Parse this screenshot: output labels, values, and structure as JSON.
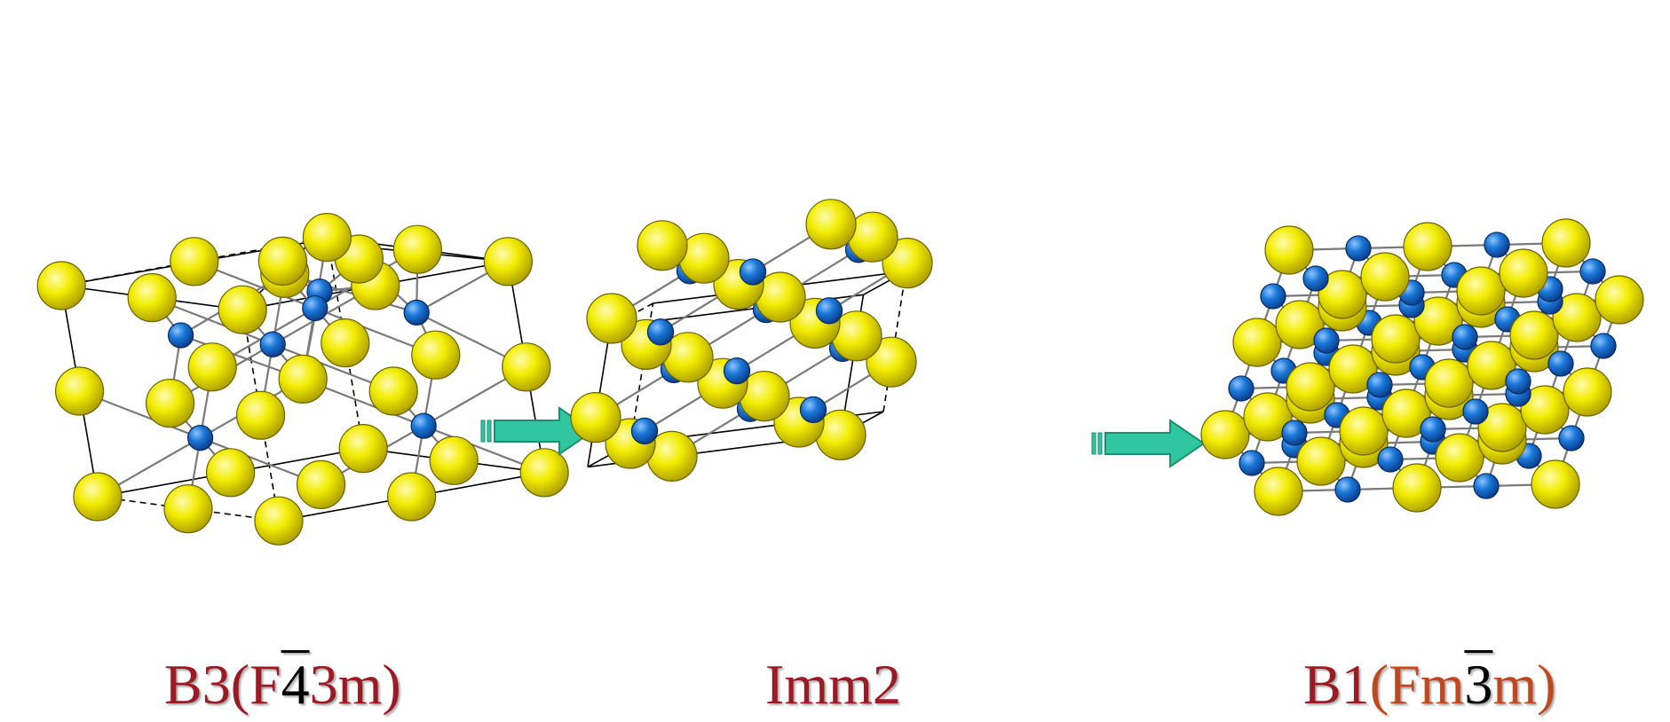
{
  "colors": {
    "cation": "#f2ec00",
    "anion": "#1a78d8",
    "caption": "#9b1a24",
    "caption_accent": "#c0481e",
    "arrow": "#2fc6a0",
    "bond": "#7a7a7a",
    "edge": "#000000"
  },
  "icons": [
    "double-arrow-right-icon"
  ],
  "structures": [
    {
      "key": "b3",
      "caption": {
        "parts": [
          {
            "text": "B3(F",
            "style": "main"
          },
          {
            "text": "4",
            "style": "bar"
          },
          {
            "text": "3m)",
            "style": "main"
          }
        ]
      }
    },
    {
      "key": "imm2",
      "caption": {
        "parts": [
          {
            "text": "Imm2",
            "style": "main"
          }
        ]
      }
    },
    {
      "key": "b1",
      "caption": {
        "parts": [
          {
            "text": "B1",
            "style": "main"
          },
          {
            "text": "(Fm",
            "style": "accent"
          },
          {
            "text": "3",
            "style": "bar"
          },
          {
            "text": "m)",
            "style": "accent"
          }
        ]
      }
    }
  ]
}
